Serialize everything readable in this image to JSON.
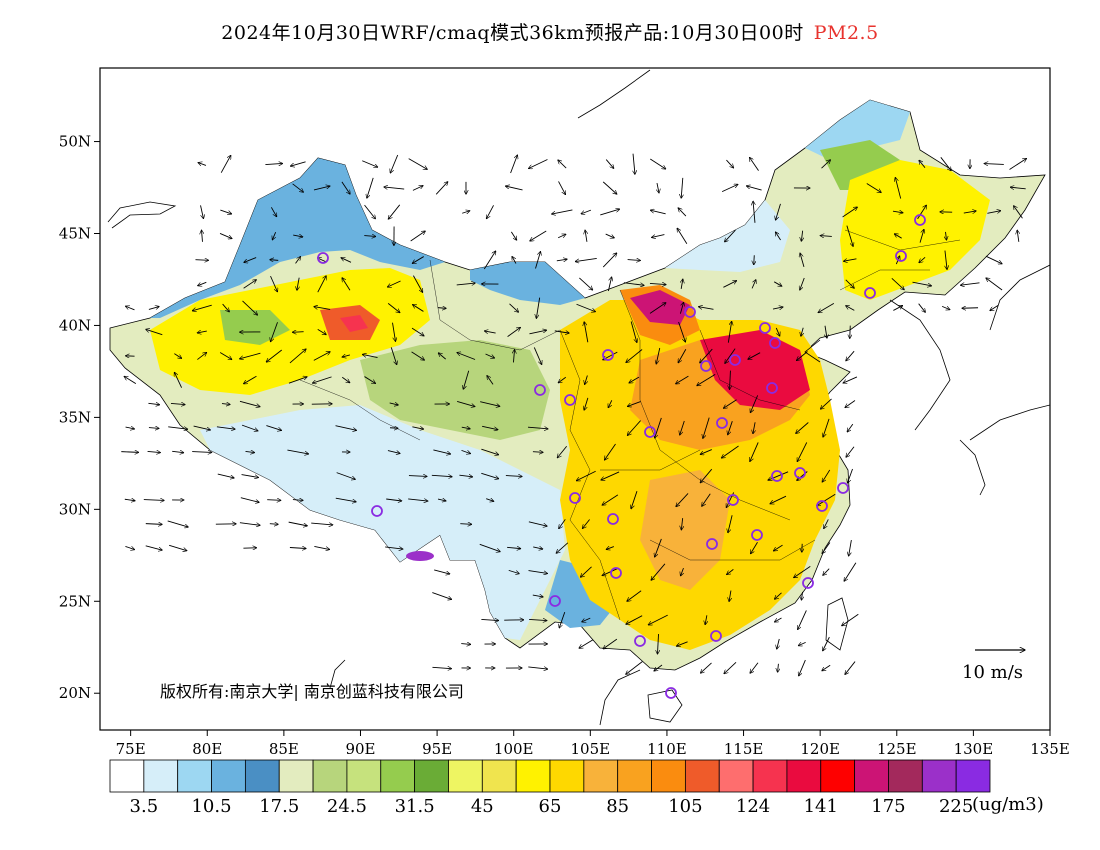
{
  "title": {
    "main": "2024年10月30日WRF/cmaq模式36km预报产品:10月30日00时",
    "variable": "PM2.5",
    "variable_color": "#e8332e"
  },
  "map": {
    "projection": "lat-lon",
    "lon_range": [
      73,
      135
    ],
    "lat_range": [
      18,
      54
    ],
    "lat_ticks": [
      "50N",
      "45N",
      "40N",
      "35N",
      "30N",
      "25N",
      "20N"
    ],
    "lon_ticks": [
      "75E",
      "80E",
      "85E",
      "90E",
      "95E",
      "100E",
      "105E",
      "110E",
      "115E",
      "120E",
      "125E",
      "130E",
      "135E"
    ],
    "copyright": "版权所有:南京大学| 南京创蓝科技有限公司",
    "wind_reference": "10 m/s",
    "city_marker_color": "#8a2be2"
  },
  "colorbar": {
    "colors": [
      "#ffffff",
      "#d6eef9",
      "#9dd7f2",
      "#6ab2df",
      "#4a8fc4",
      "#e3ecbf",
      "#b7d57c",
      "#c6e27d",
      "#95cc4e",
      "#6aac36",
      "#eef562",
      "#f0e44e",
      "#fff200",
      "#fed800",
      "#f8b23a",
      "#f9a21f",
      "#fa8c0f",
      "#ef5b2a",
      "#fe6e6e",
      "#f6334f",
      "#ea0b3f",
      "#fe0000",
      "#cc1475",
      "#a3295c",
      "#9b30c9",
      "#8a2be2"
    ],
    "labels": [
      "3.5",
      "10.5",
      "17.5",
      "24.5",
      "31.5",
      "45",
      "65",
      "85",
      "105",
      "124",
      "141",
      "175",
      "225"
    ],
    "units": "(ug/m3)"
  }
}
